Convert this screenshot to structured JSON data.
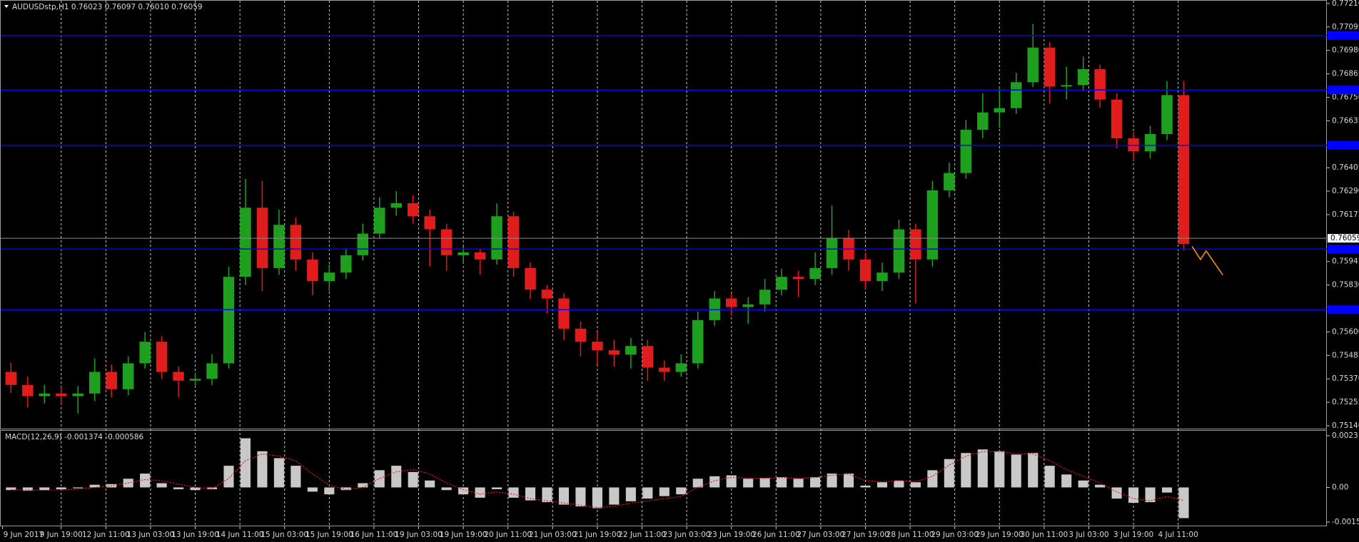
{
  "chart_data": [
    {
      "type": "candlestick",
      "title": "AUDUSDstp,H1  0.76023 0.76097 0.76010 0.76059",
      "x": [
        3,
        9,
        15,
        21,
        27,
        33,
        39,
        45,
        51,
        57,
        63,
        69,
        75,
        81,
        87,
        93,
        99,
        105,
        111,
        117,
        123,
        129,
        135,
        141,
        147,
        153,
        159,
        165,
        171,
        177,
        183,
        189,
        195,
        201,
        207,
        213,
        219,
        225,
        231,
        237,
        243,
        249,
        255,
        261,
        267,
        273,
        279,
        285,
        291,
        297,
        303,
        309,
        315,
        321,
        327,
        333,
        339,
        345,
        351,
        357,
        363,
        369,
        375,
        381,
        387,
        393,
        399,
        405,
        411,
        417,
        423
      ],
      "candles": [
        [
          0.75404,
          0.7545,
          0.753,
          0.7534
        ],
        [
          0.7534,
          0.7538,
          0.7523,
          0.75285
        ],
        [
          0.75285,
          0.7534,
          0.7525,
          0.75298
        ],
        [
          0.75298,
          0.7533,
          0.7524,
          0.75285
        ],
        [
          0.75285,
          0.75335,
          0.752,
          0.75298
        ],
        [
          0.75298,
          0.7547,
          0.7526,
          0.75404
        ],
        [
          0.75404,
          0.7544,
          0.7528,
          0.75319
        ],
        [
          0.75319,
          0.7548,
          0.7529,
          0.75446
        ],
        [
          0.75446,
          0.756,
          0.7542,
          0.75552
        ],
        [
          0.75552,
          0.7558,
          0.7537,
          0.75404
        ],
        [
          0.75404,
          0.7543,
          0.7528,
          0.75361
        ],
        [
          0.75361,
          0.754,
          0.7533,
          0.7537
        ],
        [
          0.7537,
          0.7549,
          0.7534,
          0.75446
        ],
        [
          0.75446,
          0.7592,
          0.7542,
          0.7587
        ],
        [
          0.7587,
          0.7635,
          0.7583,
          0.76209
        ],
        [
          0.76209,
          0.7634,
          0.758,
          0.75913
        ],
        [
          0.75913,
          0.762,
          0.7588,
          0.76125
        ],
        [
          0.76125,
          0.7616,
          0.759,
          0.75955
        ],
        [
          0.75955,
          0.7599,
          0.7578,
          0.75849
        ],
        [
          0.75849,
          0.7593,
          0.758,
          0.75891
        ],
        [
          0.75891,
          0.7601,
          0.7586,
          0.75976
        ],
        [
          0.75976,
          0.7613,
          0.7595,
          0.76082
        ],
        [
          0.76082,
          0.7626,
          0.7606,
          0.76209
        ],
        [
          0.76209,
          0.7629,
          0.7617,
          0.76231
        ],
        [
          0.76231,
          0.7627,
          0.7613,
          0.76167
        ],
        [
          0.76167,
          0.762,
          0.7592,
          0.76103
        ],
        [
          0.76103,
          0.7613,
          0.759,
          0.75976
        ],
        [
          0.75976,
          0.7602,
          0.7594,
          0.7599
        ],
        [
          0.7599,
          0.7601,
          0.7588,
          0.75955
        ],
        [
          0.75955,
          0.7623,
          0.7593,
          0.76167
        ],
        [
          0.76167,
          0.7619,
          0.7587,
          0.75913
        ],
        [
          0.75913,
          0.7594,
          0.7576,
          0.75807
        ],
        [
          0.75807,
          0.7583,
          0.7569,
          0.75764
        ],
        [
          0.75764,
          0.7579,
          0.7556,
          0.75616
        ],
        [
          0.75616,
          0.7565,
          0.7548,
          0.75552
        ],
        [
          0.75552,
          0.756,
          0.7544,
          0.7551
        ],
        [
          0.7551,
          0.7556,
          0.7543,
          0.75489
        ],
        [
          0.75489,
          0.7557,
          0.7542,
          0.75531
        ],
        [
          0.75531,
          0.7556,
          0.7536,
          0.75425
        ],
        [
          0.75425,
          0.7546,
          0.7536,
          0.75404
        ],
        [
          0.75404,
          0.7549,
          0.7538,
          0.75446
        ],
        [
          0.75446,
          0.757,
          0.7542,
          0.75658
        ],
        [
          0.75658,
          0.758,
          0.7563,
          0.75764
        ],
        [
          0.75764,
          0.7579,
          0.7568,
          0.75722
        ],
        [
          0.75722,
          0.7577,
          0.7564,
          0.75735
        ],
        [
          0.75735,
          0.7586,
          0.757,
          0.75807
        ],
        [
          0.75807,
          0.7591,
          0.7578,
          0.7587
        ],
        [
          0.7587,
          0.759,
          0.7577,
          0.7586
        ],
        [
          0.7586,
          0.7599,
          0.7583,
          0.75913
        ],
        [
          0.75913,
          0.7622,
          0.7588,
          0.76061
        ],
        [
          0.76061,
          0.761,
          0.759,
          0.75955
        ],
        [
          0.75955,
          0.7599,
          0.7581,
          0.75849
        ],
        [
          0.75849,
          0.7594,
          0.758,
          0.75891
        ],
        [
          0.75891,
          0.7615,
          0.7586,
          0.76103
        ],
        [
          0.76103,
          0.7613,
          0.7574,
          0.75955
        ],
        [
          0.75955,
          0.7634,
          0.7592,
          0.76294
        ],
        [
          0.76294,
          0.7643,
          0.7626,
          0.76379
        ],
        [
          0.76379,
          0.7664,
          0.7635,
          0.76591
        ],
        [
          0.76591,
          0.7677,
          0.7655,
          0.76676
        ],
        [
          0.76676,
          0.768,
          0.766,
          0.76697
        ],
        [
          0.76697,
          0.7687,
          0.7667,
          0.76824
        ],
        [
          0.76824,
          0.7711,
          0.768,
          0.76994
        ],
        [
          0.76994,
          0.7702,
          0.7672,
          0.76803
        ],
        [
          0.76803,
          0.769,
          0.7674,
          0.7681
        ],
        [
          0.7681,
          0.7695,
          0.7678,
          0.76888
        ],
        [
          0.76888,
          0.7691,
          0.767,
          0.76739
        ],
        [
          0.76739,
          0.7677,
          0.765,
          0.76549
        ],
        [
          0.76549,
          0.7658,
          0.7644,
          0.76485
        ],
        [
          0.76485,
          0.7661,
          0.7645,
          0.7657
        ],
        [
          0.7657,
          0.7683,
          0.7654,
          0.76761
        ],
        [
          0.76761,
          0.7683,
          0.76,
          0.76031
        ]
      ],
      "up_color": "#1ea01e",
      "down_color": "#e01c1c",
      "levels": [
        0.77053,
        0.76786,
        0.76515,
        0.76006,
        0.75709
      ],
      "level_color": "#0000ff",
      "last_price": 0.76059,
      "forecast": {
        "x": [
          426,
          429,
          431,
          437
        ],
        "values": [
          0.76019,
          0.75955,
          0.75997,
          0.75879
        ],
        "color": "#ff9900"
      },
      "xlim": [
        0,
        474
      ],
      "xticks": [
        {
          "value": 0,
          "label": "9 Jun 2017"
        },
        {
          "value": 21,
          "label": "9 Jun 19:00"
        },
        {
          "value": 37,
          "label": "12 Jun 11:00"
        },
        {
          "value": 53,
          "label": "13 Jun 03:00"
        },
        {
          "value": 69,
          "label": "13 Jun 19:00"
        },
        {
          "value": 85,
          "label": "14 Jun 11:00"
        },
        {
          "value": 101,
          "label": "15 Jun 03:00"
        },
        {
          "value": 117,
          "label": "15 Jun 19:00"
        },
        {
          "value": 133,
          "label": "16 Jun 11:00"
        },
        {
          "value": 149,
          "label": "19 Jun 03:00"
        },
        {
          "value": 165,
          "label": "19 Jun 19:00"
        },
        {
          "value": 181,
          "label": "20 Jun 11:00"
        },
        {
          "value": 197,
          "label": "21 Jun 03:00"
        },
        {
          "value": 213,
          "label": "21 Jun 19:00"
        },
        {
          "value": 229,
          "label": "22 Jun 11:00"
        },
        {
          "value": 245,
          "label": "23 Jun 03:00"
        },
        {
          "value": 261,
          "label": "23 Jun 19:00"
        },
        {
          "value": 277,
          "label": "26 Jun 11:00"
        },
        {
          "value": 293,
          "label": "27 Jun 03:00"
        },
        {
          "value": 309,
          "label": "27 Jun 19:00"
        },
        {
          "value": 325,
          "label": "28 Jun 11:00"
        },
        {
          "value": 341,
          "label": "29 Jun 03:00"
        },
        {
          "value": 357,
          "label": "29 Jun 19:00"
        },
        {
          "value": 373,
          "label": "30 Jun 11:00"
        },
        {
          "value": 389,
          "label": "3 Jul 03:00"
        },
        {
          "value": 405,
          "label": "3 Jul 19:00"
        },
        {
          "value": 421,
          "label": "4 Jul 11:00"
        }
      ],
      "ylim": [
        0.7514,
        0.7721
      ],
      "yticks": [
        {
          "value": 0.7721,
          "label": "0.77210"
        },
        0.77095,
        {
          "value": 0.7698,
          "label": "0.76980"
        },
        0.76865,
        {
          "value": 0.7675,
          "label": "0.76750"
        },
        0.76635,
        0.76405,
        {
          "value": 0.7629,
          "label": "0.76290"
        },
        0.76175,
        0.75945,
        {
          "value": 0.7583,
          "label": "0.75830"
        },
        {
          "value": 0.756,
          "label": "0.75600"
        },
        0.75485,
        {
          "value": 0.7537,
          "label": "0.75370"
        },
        0.75255,
        {
          "value": 0.7514,
          "label": "0.75140"
        }
      ],
      "grid": true
    },
    {
      "type": "macd",
      "title": "MACD(12,26,9) -0.001374 -0.000586",
      "x": [
        3,
        9,
        15,
        21,
        27,
        33,
        39,
        45,
        51,
        57,
        63,
        69,
        75,
        81,
        87,
        93,
        99,
        105,
        111,
        117,
        123,
        129,
        135,
        141,
        147,
        153,
        159,
        165,
        171,
        177,
        183,
        189,
        195,
        201,
        207,
        213,
        219,
        225,
        231,
        237,
        243,
        249,
        255,
        261,
        267,
        273,
        279,
        285,
        291,
        297,
        303,
        309,
        315,
        321,
        327,
        333,
        339,
        345,
        351,
        357,
        363,
        369,
        375,
        381,
        387,
        393,
        399,
        405,
        411,
        417,
        423
      ],
      "series": [
        {
          "color": "#c8c8c8",
          "values": [
            -0.00012,
            -0.00015,
            -0.00012,
            -8e-05,
            -4e-05,
            0.00012,
            0.00015,
            0.00039,
            0.00062,
            0.00019,
            -8e-05,
            -0.00012,
            -8e-05,
            0.00097,
            0.0022,
            0.00162,
            0.00131,
            0.00097,
            -0.00019,
            -0.00031,
            -0.00012,
            0.00019,
            0.00077,
            0.00097,
            0.00069,
            0.00031,
            -0.00012,
            -0.00031,
            -0.00046,
            -8e-05,
            -0.00046,
            -0.00058,
            -0.00066,
            -0.00077,
            -0.00085,
            -0.00093,
            -0.00077,
            -0.00062,
            -0.0005,
            -0.00039,
            -0.00031,
            0.00039,
            0.0005,
            0.00054,
            0.00039,
            0.00042,
            0.00046,
            0.00039,
            0.00046,
            0.00062,
            0.00062,
            8e-05,
            0.00023,
            0.00031,
            0.00023,
            0.00077,
            0.00127,
            0.00154,
            0.0017,
            0.00162,
            0.00147,
            0.00154,
            0.00097,
            0.00058,
            0.00031,
            0.00012,
            -0.0005,
            -0.00069,
            -0.00066,
            -0.00023,
            -0.001374
          ]
        },
        {
          "color": "#e01c1c",
          "values": [
            -0.0001,
            -0.00012,
            -0.00013,
            -0.00011,
            -8e-05,
            0,
            8e-05,
            0.0002,
            0.00035,
            0.0003,
            0.00015,
            0,
            -5e-05,
            0.0004,
            0.0012,
            0.0015,
            0.0014,
            0.0012,
            0.0006,
            0.0001,
            -0.0001,
            0,
            0.0004,
            0.0007,
            0.0008,
            0.0006,
            0.0002,
            -0.0001,
            -0.0003,
            -0.0002,
            -0.0003,
            -0.0005,
            -0.0006,
            -0.0007,
            -0.0008,
            -0.0009,
            -0.00085,
            -0.0007,
            -0.0006,
            -0.0005,
            -0.0004,
            0,
            0.0003,
            0.00045,
            0.00042,
            0.0004,
            0.00044,
            0.0004,
            0.00044,
            0.00055,
            0.0006,
            0.0003,
            0.00025,
            0.0003,
            0.00026,
            0.0005,
            0.001,
            0.0014,
            0.0016,
            0.0016,
            0.0015,
            0.0015,
            0.0012,
            0.0008,
            0.0005,
            0.0002,
            -0.0002,
            -0.0005,
            -0.0006,
            -0.0004,
            -0.000586
          ]
        }
      ],
      "ylim": [
        -0.001549,
        0.002313
      ],
      "yticks": [
        0.002313,
        {
          "value": 0,
          "label": "0.00"
        },
        -0.001549
      ]
    }
  ]
}
